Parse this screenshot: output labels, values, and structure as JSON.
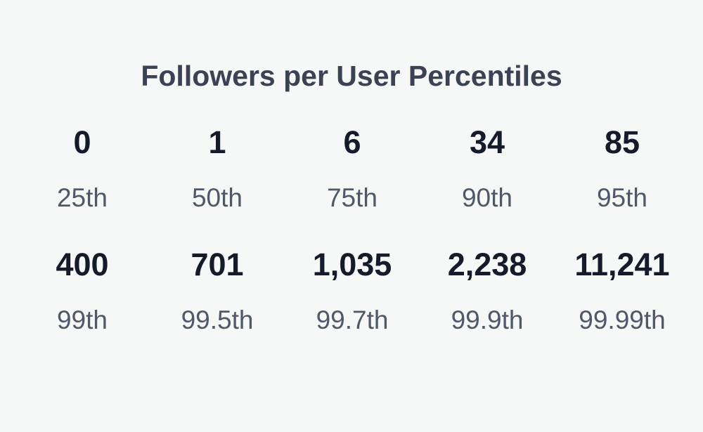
{
  "header": {
    "title": "Followers per User Percentiles"
  },
  "stats": [
    {
      "value": "0",
      "label": "25th"
    },
    {
      "value": "1",
      "label": "50th"
    },
    {
      "value": "6",
      "label": "75th"
    },
    {
      "value": "34",
      "label": "90th"
    },
    {
      "value": "85",
      "label": "95th"
    },
    {
      "value": "400",
      "label": "99th"
    },
    {
      "value": "701",
      "label": "99.5th"
    },
    {
      "value": "1,035",
      "label": "99.7th"
    },
    {
      "value": "2,238",
      "label": "99.9th"
    },
    {
      "value": "11,241",
      "label": "99.99th"
    }
  ]
}
